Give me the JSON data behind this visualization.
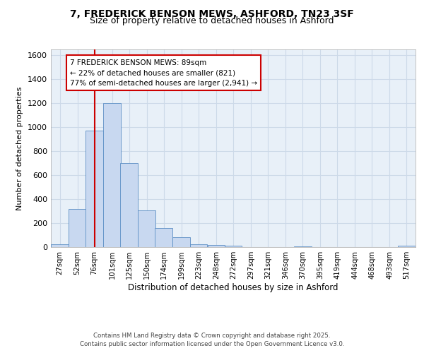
{
  "title_line1": "7, FREDERICK BENSON MEWS, ASHFORD, TN23 3SF",
  "title_line2": "Size of property relative to detached houses in Ashford",
  "xlabel": "Distribution of detached houses by size in Ashford",
  "ylabel": "Number of detached properties",
  "bins": [
    27,
    52,
    76,
    101,
    125,
    150,
    174,
    199,
    223,
    248,
    272,
    297,
    321,
    346,
    370,
    395,
    419,
    444,
    468,
    493,
    517
  ],
  "bar_heights": [
    25,
    320,
    975,
    1200,
    700,
    305,
    160,
    80,
    25,
    18,
    12,
    0,
    0,
    0,
    8,
    0,
    0,
    0,
    0,
    0,
    12
  ],
  "bar_color": "#c8d8f0",
  "bar_edge_color": "#5b8ec4",
  "property_size": 89,
  "red_line_x": 89,
  "annotation_title": "7 FREDERICK BENSON MEWS: 89sqm",
  "annotation_line1": "← 22% of detached houses are smaller (821)",
  "annotation_line2": "77% of semi-detached houses are larger (2,941) →",
  "annotation_box_color": "#ffffff",
  "annotation_box_edge": "#cc0000",
  "red_line_color": "#cc0000",
  "ylim": [
    0,
    1650
  ],
  "yticks": [
    0,
    200,
    400,
    600,
    800,
    1000,
    1200,
    1400,
    1600
  ],
  "grid_color": "#ccd9e8",
  "bg_color": "#e8f0f8",
  "footer_line1": "Contains HM Land Registry data © Crown copyright and database right 2025.",
  "footer_line2": "Contains public sector information licensed under the Open Government Licence v3.0."
}
